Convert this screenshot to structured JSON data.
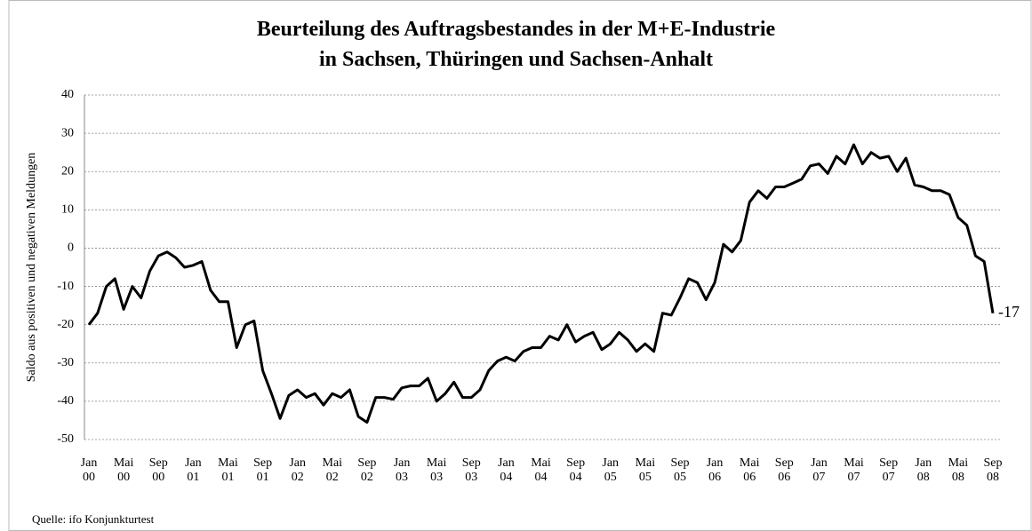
{
  "chart_data": {
    "type": "line",
    "title": [
      "Beurteilung des Auftragsbestandes in der M+E-Industrie",
      "in Sachsen, Thüringen und Sachsen-Anhalt"
    ],
    "y_label": "Saldo aus positiven und negativen Meldungen",
    "source": "Quelle: ifo Konjunkturtest",
    "color": "#000000",
    "grid": true,
    "ylim": [
      -50,
      40
    ],
    "yticks": [
      -50,
      -40,
      -30,
      -20,
      -10,
      0,
      10,
      20,
      30,
      40
    ],
    "categories": [
      "Jan 00",
      null,
      null,
      null,
      "Mai 00",
      null,
      null,
      null,
      "Sep 00",
      null,
      null,
      null,
      "Jan 01",
      null,
      null,
      null,
      "Mai 01",
      null,
      null,
      null,
      "Sep 01",
      null,
      null,
      null,
      "Jan 02",
      null,
      null,
      null,
      "Mai 02",
      null,
      null,
      null,
      "Sep 02",
      null,
      null,
      null,
      "Jan 03",
      null,
      null,
      null,
      "Mai 03",
      null,
      null,
      null,
      "Sep 03",
      null,
      null,
      null,
      "Jan 04",
      null,
      null,
      null,
      "Mai 04",
      null,
      null,
      null,
      "Sep 04",
      null,
      null,
      null,
      "Jan 05",
      null,
      null,
      null,
      "Mai 05",
      null,
      null,
      null,
      "Sep 05",
      null,
      null,
      null,
      "Jan 06",
      null,
      null,
      null,
      "Mai 06",
      null,
      null,
      null,
      "Sep 06",
      null,
      null,
      null,
      "Jan 07",
      null,
      null,
      null,
      "Mai 07",
      null,
      null,
      null,
      "Sep 07",
      null,
      null,
      null,
      "Jan 08",
      null,
      null,
      null,
      "Mai 08",
      null,
      null,
      null,
      "Sep 08"
    ],
    "values": [
      -20,
      -17,
      -10,
      -8,
      -16,
      -10,
      -13,
      -6,
      -2,
      -1,
      -2.5,
      -5,
      -4.5,
      -3.5,
      -11,
      -14,
      -14,
      -26,
      -20,
      -19,
      -32,
      -38,
      -44.5,
      -38.5,
      -37,
      -39,
      -38,
      -41,
      -38,
      -39,
      -37,
      -44,
      -45.5,
      -39,
      -39,
      -39.5,
      -36.5,
      -36,
      -36,
      -34,
      -40,
      -38,
      -35,
      -39,
      -39,
      -37,
      -32,
      -29.5,
      -28.5,
      -29.5,
      -27,
      -26,
      -26,
      -23,
      -24,
      -20,
      -24.5,
      -23,
      -22,
      -26.5,
      -25,
      -22,
      -24,
      -27,
      -25,
      -27,
      -17,
      -17.5,
      -13,
      -8,
      -9,
      -13.5,
      -9,
      1,
      -1,
      2,
      12,
      15,
      13,
      16,
      16,
      17,
      18,
      21.5,
      22,
      19.5,
      24,
      22,
      27,
      22,
      25,
      23.5,
      24,
      20,
      23.5,
      16.5,
      16,
      15,
      15,
      14,
      8,
      6,
      -2,
      -3.5,
      -17
    ]
  }
}
